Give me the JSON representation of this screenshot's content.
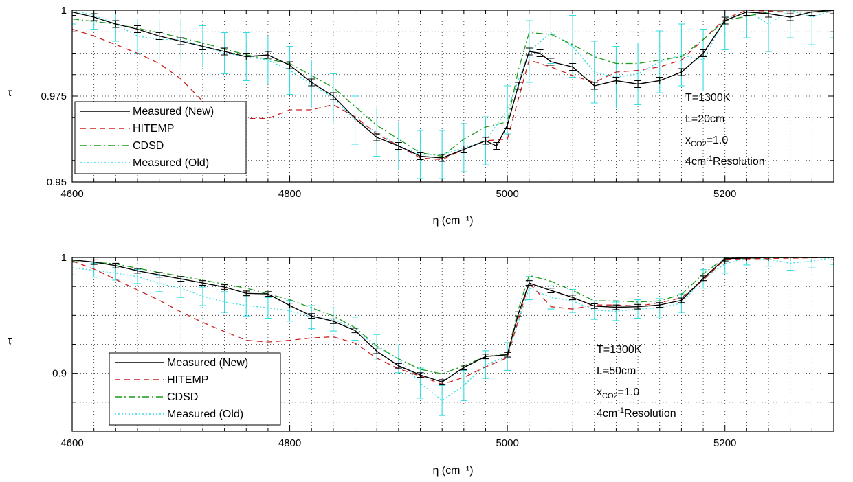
{
  "chart_data": [
    {
      "type": "line",
      "xlabel": "η (cm⁻¹)",
      "ylabel": "τ",
      "xlim": [
        4600,
        5300
      ],
      "ylim": [
        0.95,
        1.0
      ],
      "xticks": [
        4600,
        4800,
        5000,
        5200
      ],
      "xtick_labels": [
        "4600",
        "4800",
        "5000",
        "5200"
      ],
      "yticks": [
        0.95,
        0.975,
        1.0
      ],
      "ytick_labels": [
        "0.95",
        "0.975",
        "1"
      ],
      "grid": true,
      "legend": "lower-left",
      "legend_entries": [
        "Measured (New)",
        "HITEMP",
        "CDSD",
        "Measured (Old)"
      ],
      "annotations": [
        "T=1300K",
        "L=20cm",
        "xCO2=1.0",
        "4cm-1Resolution"
      ],
      "annotation_parts": {
        "conc_main": "x",
        "conc_sub": "CO2",
        "conc_val": "=1.0",
        "res_main": "4cm",
        "res_sup": "-1",
        "res_tail": "Resolution"
      },
      "series": [
        {
          "name": "Measured (New)",
          "color": "#000000",
          "style": "solid",
          "error_bars": true,
          "x": [
            4600,
            4620,
            4640,
            4660,
            4680,
            4700,
            4720,
            4740,
            4760,
            4780,
            4800,
            4820,
            4840,
            4860,
            4880,
            4900,
            4920,
            4940,
            4960,
            4980,
            4990,
            5000,
            5010,
            5020,
            5030,
            5040,
            5060,
            5080,
            5100,
            5120,
            5140,
            5160,
            5180,
            5200,
            5220,
            5240,
            5260,
            5280,
            5300
          ],
          "y": [
            0.9995,
            0.998,
            0.996,
            0.9945,
            0.9925,
            0.991,
            0.9895,
            0.988,
            0.9865,
            0.987,
            0.984,
            0.979,
            0.975,
            0.9685,
            0.963,
            0.9605,
            0.9575,
            0.957,
            0.9595,
            0.962,
            0.9605,
            0.9665,
            0.978,
            0.988,
            0.9875,
            0.985,
            0.9835,
            0.978,
            0.9795,
            0.9785,
            0.9795,
            0.982,
            0.9875,
            0.997,
            0.9995,
            0.999,
            0.998,
            0.9995,
            1.0
          ],
          "err": [
            0.001,
            0.001,
            0.001,
            0.001,
            0.001,
            0.001,
            0.001,
            0.001,
            0.001,
            0.001,
            0.001,
            0.001,
            0.001,
            0.001,
            0.001,
            0.001,
            0.001,
            0.001,
            0.001,
            0.001,
            0.001,
            0.001,
            0.001,
            0.001,
            0.001,
            0.001,
            0.001,
            0.001,
            0.001,
            0.001,
            0.001,
            0.001,
            0.001,
            0.001,
            0.001,
            0.001,
            0.001,
            0.001,
            0.001
          ]
        },
        {
          "name": "HITEMP",
          "color": "#cc1f1f",
          "style": "dashed",
          "error_bars": false,
          "x": [
            4600,
            4620,
            4640,
            4660,
            4680,
            4700,
            4720,
            4740,
            4760,
            4780,
            4800,
            4820,
            4840,
            4860,
            4880,
            4900,
            4920,
            4940,
            4960,
            4980,
            5000,
            5020,
            5040,
            5060,
            5080,
            5100,
            5120,
            5140,
            5160,
            5180,
            5200,
            5220,
            5260,
            5300
          ],
          "y": [
            0.9945,
            0.9925,
            0.99,
            0.9875,
            0.9845,
            0.98,
            0.9735,
            0.9705,
            0.9685,
            0.9685,
            0.971,
            0.971,
            0.9725,
            0.969,
            0.964,
            0.9605,
            0.957,
            0.9565,
            0.9595,
            0.962,
            0.9625,
            0.9855,
            0.9835,
            0.981,
            0.979,
            0.982,
            0.9825,
            0.9835,
            0.9855,
            0.9915,
            0.9975,
            1.0,
            0.9995,
            0.9995
          ]
        },
        {
          "name": "CDSD",
          "color": "#1a9a1a",
          "style": "dashdot",
          "error_bars": false,
          "x": [
            4600,
            4640,
            4680,
            4720,
            4760,
            4800,
            4840,
            4860,
            4880,
            4900,
            4920,
            4940,
            4960,
            4980,
            5000,
            5010,
            5020,
            5040,
            5060,
            5080,
            5100,
            5120,
            5140,
            5160,
            5180,
            5200,
            5240,
            5300
          ],
          "y": [
            0.9975,
            0.996,
            0.9935,
            0.9905,
            0.987,
            0.9845,
            0.9775,
            0.972,
            0.9665,
            0.9625,
            0.9585,
            0.9575,
            0.9625,
            0.966,
            0.9675,
            0.9825,
            0.9935,
            0.993,
            0.99,
            0.9865,
            0.9845,
            0.9845,
            0.9855,
            0.9865,
            0.9915,
            0.997,
            0.9995,
            0.9995
          ]
        },
        {
          "name": "Measured (Old)",
          "color": "#33dde0",
          "style": "dotted",
          "error_bars": true,
          "x": [
            4600,
            4620,
            4640,
            4660,
            4680,
            4700,
            4720,
            4740,
            4760,
            4780,
            4800,
            4820,
            4840,
            4860,
            4880,
            4900,
            4920,
            4940,
            4960,
            4980,
            5000,
            5020,
            5040,
            5060,
            5080,
            5100,
            5120,
            5140,
            5160,
            5180,
            5200,
            5220,
            5240,
            5260,
            5280,
            5300
          ],
          "y": [
            1.0,
            0.9985,
            0.996,
            0.9925,
            0.9915,
            0.9915,
            0.9895,
            0.9875,
            0.9865,
            0.9855,
            0.9825,
            0.9785,
            0.9745,
            0.968,
            0.9645,
            0.9605,
            0.958,
            0.958,
            0.96,
            0.962,
            0.971,
            0.988,
            0.9935,
            0.9895,
            0.982,
            0.9805,
            0.9815,
            0.985,
            0.987,
            0.9855,
            0.9975,
            1.0,
            0.996,
            1.0,
            0.998,
            1.0
          ],
          "err": [
            0.004,
            0.004,
            0.005,
            0.005,
            0.006,
            0.006,
            0.006,
            0.006,
            0.007,
            0.007,
            0.007,
            0.007,
            0.007,
            0.007,
            0.007,
            0.007,
            0.007,
            0.007,
            0.007,
            0.007,
            0.007,
            0.009,
            0.009,
            0.009,
            0.009,
            0.009,
            0.009,
            0.009,
            0.009,
            0.009,
            0.009,
            0.008,
            0.008,
            0.008,
            0.008,
            0.008
          ]
        }
      ]
    },
    {
      "type": "line",
      "xlabel": "η (cm⁻¹)",
      "ylabel": "τ",
      "xlim": [
        4600,
        5300
      ],
      "ylim": [
        0.85,
        1.0
      ],
      "xticks": [
        4600,
        4800,
        5000,
        5200
      ],
      "xtick_labels": [
        "4600",
        "4800",
        "5000",
        "5200"
      ],
      "yticks": [
        0.9,
        1.0
      ],
      "ytick_labels": [
        "0.9",
        "1"
      ],
      "grid": true,
      "legend": "lower-left",
      "legend_entries": [
        "Measured (New)",
        "HITEMP",
        "CDSD",
        "Measured (Old)"
      ],
      "annotations": [
        "T=1300K",
        "L=50cm",
        "xCO2=1.0",
        "4cm-1Resolution"
      ],
      "annotation_parts": {
        "conc_main": "x",
        "conc_sub": "CO2",
        "conc_val": "=1.0",
        "res_main": "4cm",
        "res_sup": "-1",
        "res_tail": "Resolution"
      },
      "series": [
        {
          "name": "Measured (New)",
          "color": "#000000",
          "style": "solid",
          "error_bars": true,
          "x": [
            4600,
            4620,
            4640,
            4660,
            4680,
            4700,
            4720,
            4740,
            4760,
            4780,
            4800,
            4820,
            4840,
            4860,
            4880,
            4900,
            4920,
            4940,
            4960,
            4980,
            5000,
            5010,
            5020,
            5040,
            5060,
            5080,
            5100,
            5120,
            5140,
            5160,
            5180,
            5200,
            5240,
            5300
          ],
          "y": [
            0.998,
            0.996,
            0.993,
            0.9885,
            0.985,
            0.9815,
            0.978,
            0.9745,
            0.969,
            0.9685,
            0.9585,
            0.9495,
            0.945,
            0.937,
            0.919,
            0.9065,
            0.8985,
            0.8925,
            0.905,
            0.9145,
            0.916,
            0.951,
            0.978,
            0.9715,
            0.9655,
            0.958,
            0.957,
            0.9575,
            0.959,
            0.963,
            0.982,
            0.999,
            1.0,
            1.0
          ],
          "err": [
            0.002,
            0.002,
            0.002,
            0.002,
            0.002,
            0.002,
            0.002,
            0.002,
            0.002,
            0.002,
            0.002,
            0.002,
            0.002,
            0.002,
            0.002,
            0.002,
            0.002,
            0.002,
            0.002,
            0.002,
            0.002,
            0.002,
            0.002,
            0.002,
            0.002,
            0.002,
            0.002,
            0.002,
            0.002,
            0.002,
            0.002,
            0.002,
            0.002,
            0.002
          ]
        },
        {
          "name": "HITEMP",
          "color": "#cc1f1f",
          "style": "dashed",
          "error_bars": false,
          "x": [
            4600,
            4620,
            4640,
            4660,
            4680,
            4700,
            4720,
            4740,
            4760,
            4780,
            4800,
            4820,
            4840,
            4860,
            4880,
            4900,
            4920,
            4940,
            4960,
            4980,
            5000,
            5020,
            5040,
            5060,
            5080,
            5100,
            5120,
            5140,
            5160,
            5180,
            5200,
            5300
          ],
          "y": [
            0.997,
            0.99,
            0.981,
            0.972,
            0.963,
            0.953,
            0.944,
            0.936,
            0.9285,
            0.927,
            0.9285,
            0.9305,
            0.9315,
            0.926,
            0.913,
            0.904,
            0.8975,
            0.8905,
            0.8965,
            0.9055,
            0.9135,
            0.978,
            0.9575,
            0.9555,
            0.959,
            0.959,
            0.958,
            0.961,
            0.965,
            0.9805,
            0.9985,
            1.0
          ]
        },
        {
          "name": "CDSD",
          "color": "#1a9a1a",
          "style": "dashdot",
          "error_bars": false,
          "x": [
            4600,
            4640,
            4680,
            4720,
            4760,
            4800,
            4840,
            4860,
            4880,
            4900,
            4920,
            4940,
            4960,
            4980,
            5000,
            5010,
            5020,
            5040,
            5060,
            5080,
            5100,
            5120,
            5140,
            5160,
            5180,
            5200,
            5300
          ],
          "y": [
            0.9975,
            0.9945,
            0.987,
            0.9805,
            0.9735,
            0.9635,
            0.9495,
            0.9395,
            0.9235,
            0.9125,
            0.9035,
            0.8995,
            0.9065,
            0.9145,
            0.9165,
            0.955,
            0.9845,
            0.9795,
            0.9715,
            0.9625,
            0.9625,
            0.9615,
            0.9625,
            0.968,
            0.986,
            0.9995,
            1.0
          ]
        },
        {
          "name": "Measured (Old)",
          "color": "#33dde0",
          "style": "dotted",
          "error_bars": true,
          "x": [
            4600,
            4620,
            4640,
            4660,
            4680,
            4700,
            4720,
            4740,
            4760,
            4780,
            4800,
            4820,
            4840,
            4860,
            4880,
            4900,
            4920,
            4940,
            4960,
            4980,
            5000,
            5020,
            5040,
            5060,
            5080,
            5100,
            5120,
            5140,
            5160,
            5180,
            5200,
            5220,
            5240,
            5260,
            5280,
            5300
          ],
          "y": [
            0.991,
            0.989,
            0.9865,
            0.9835,
            0.9775,
            0.9735,
            0.9665,
            0.9615,
            0.9585,
            0.9565,
            0.954,
            0.9485,
            0.9465,
            0.9385,
            0.9225,
            0.9125,
            0.8915,
            0.8765,
            0.8895,
            0.9075,
            0.9145,
            0.9735,
            0.9655,
            0.9625,
            0.9545,
            0.9535,
            0.9555,
            0.9565,
            0.9605,
            0.9815,
            0.9945,
            0.9995,
            0.9985,
            0.995,
            0.997,
            1.0
          ],
          "err": [
            0.006,
            0.006,
            0.006,
            0.006,
            0.007,
            0.008,
            0.008,
            0.009,
            0.009,
            0.009,
            0.009,
            0.01,
            0.01,
            0.01,
            0.011,
            0.012,
            0.013,
            0.013,
            0.013,
            0.012,
            0.012,
            0.01,
            0.01,
            0.01,
            0.008,
            0.008,
            0.008,
            0.008,
            0.008,
            0.008,
            0.008,
            0.006,
            0.006,
            0.006,
            0.006,
            0.006
          ]
        }
      ]
    }
  ]
}
